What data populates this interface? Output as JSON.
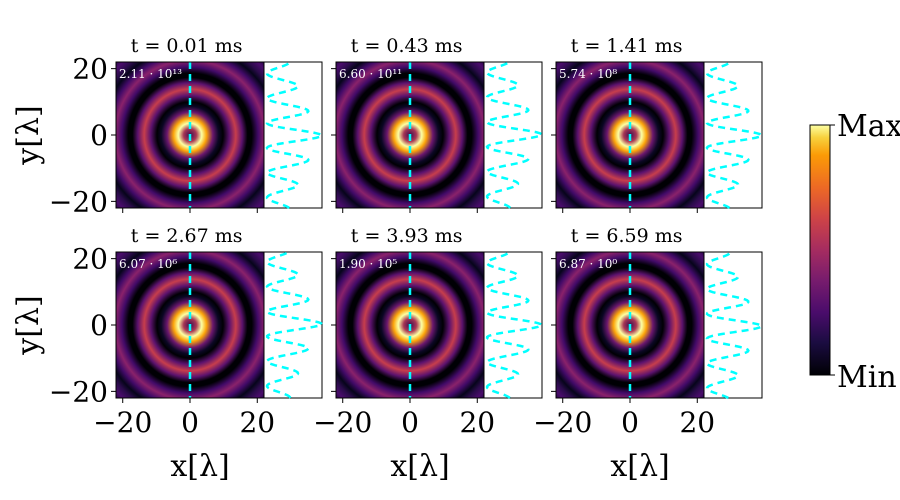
{
  "chart_data": {
    "type": "heatmap",
    "description_free": true,
    "colormap": "inferno",
    "panels": [
      {
        "title": "t = 0.01 ms",
        "scale_label": "2.11 · 10¹³",
        "profile_peak_offset": -0.15
      },
      {
        "title": "t = 0.43 ms",
        "scale_label": "6.60 · 10¹¹",
        "profile_peak_offset": 0.15
      },
      {
        "title": "t = 1.41 ms",
        "scale_label": "5.74 · 10⁸",
        "profile_peak_offset": -0.1
      },
      {
        "title": "t = 2.67 ms",
        "scale_label": "6.07 · 10⁶",
        "profile_peak_offset": 0.3
      },
      {
        "title": "t = 3.93 ms",
        "scale_label": "1.90 · 10⁵",
        "profile_peak_offset": 0.0
      },
      {
        "title": "t = 6.59 ms",
        "scale_label": "6.87 · 10⁰",
        "profile_peak_offset": -0.35
      }
    ],
    "xlabel": "x[λ]",
    "ylabel": "y[λ]",
    "xlim": [
      -22,
      22
    ],
    "ylim": [
      -22,
      22
    ],
    "x_ticks": [
      "−20",
      "0",
      "20"
    ],
    "y_ticks": [
      "20",
      "0",
      "−20"
    ],
    "colorbar": {
      "max_label": "Max",
      "min_label": "Min"
    },
    "cut_line_color": "#00ffff",
    "grid": false
  }
}
